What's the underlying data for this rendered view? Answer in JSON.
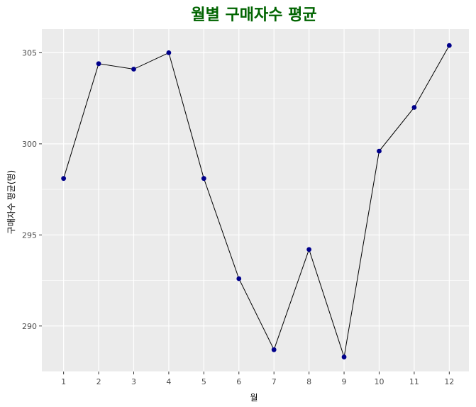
{
  "chart_data": {
    "type": "line",
    "title": "월별 구매자수 평균",
    "xlabel": "월",
    "ylabel": "구매자수 평균(명)",
    "x": [
      1,
      2,
      3,
      4,
      5,
      6,
      7,
      8,
      9,
      10,
      11,
      12
    ],
    "x_tick_labels": [
      "1",
      "2",
      "3",
      "4",
      "5",
      "6",
      "7",
      "8",
      "9",
      "10",
      "11",
      "12"
    ],
    "y_ticks": [
      290,
      295,
      300,
      305
    ],
    "y_tick_labels": [
      "290",
      "295",
      "300",
      "305"
    ],
    "xlim": [
      0.38,
      12.56
    ],
    "ylim": [
      287.5,
      306.3
    ],
    "series": [
      {
        "values": [
          298.1,
          304.4,
          304.1,
          305.0,
          298.1,
          292.6,
          288.7,
          294.2,
          288.3,
          299.6,
          302.0,
          305.4
        ]
      }
    ],
    "colors": {
      "panel": "#ebebeb",
      "grid": "#ffffff",
      "line": "#000000",
      "point": "#00008b",
      "title": "#006400"
    },
    "grid": true,
    "legend": "none"
  }
}
